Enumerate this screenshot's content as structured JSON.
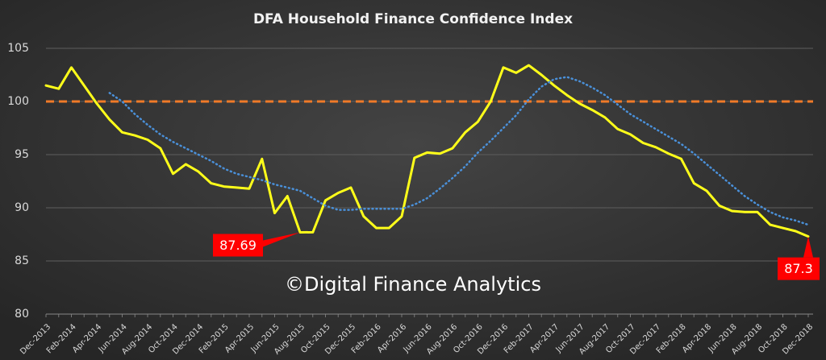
{
  "chart_data": {
    "type": "line",
    "title": "DFA Household Finance Confidence Index",
    "watermark": "©Digital Finance Analytics",
    "categories": [
      "Dec-2013",
      null,
      "Feb-2014",
      null,
      "Apr-2014",
      null,
      "Jun-2014",
      null,
      "Aug-2014",
      null,
      "Oct-2014",
      null,
      "Dec-2014",
      null,
      "Feb-2015",
      null,
      "Apr-2015",
      null,
      "Jun-2015",
      null,
      "Aug-2015",
      null,
      "Oct-2015",
      null,
      "Dec-2015",
      null,
      "Feb-2016",
      null,
      "Apr-2016",
      null,
      "Jun-2016",
      null,
      "Aug-2016",
      null,
      "Oct-2016",
      null,
      "Dec-2016",
      null,
      "Feb-2017",
      null,
      "Apr-2017",
      null,
      "Jun-2017",
      null,
      "Aug-2017",
      null,
      "Oct-2017",
      null,
      "Dec-2017",
      null,
      "Feb-2018",
      null,
      "Apr-2018",
      null,
      "Jun-2018",
      null,
      "Aug-2018",
      null,
      "Oct-2018",
      null,
      "Dec-2018"
    ],
    "series": [
      {
        "color": "#ffff1a",
        "dash": "solid",
        "values": [
          101.5,
          101.2,
          103.2,
          101.5,
          99.8,
          98.3,
          97.1,
          96.8,
          96.4,
          95.6,
          93.2,
          94.1,
          93.4,
          92.3,
          92.0,
          91.9,
          91.8,
          94.6,
          89.5,
          91.1,
          87.69,
          87.7,
          90.7,
          91.4,
          91.9,
          89.2,
          88.1,
          88.1,
          89.2,
          94.7,
          95.2,
          95.1,
          95.6,
          97.1,
          98.1,
          100.0,
          103.2,
          102.7,
          103.4,
          102.5,
          101.5,
          100.6,
          99.8,
          99.2,
          98.5,
          97.4,
          96.9,
          96.1,
          95.7,
          95.1,
          94.6,
          92.3,
          91.6,
          90.2,
          89.7,
          89.6,
          89.6,
          88.4,
          88.1,
          87.8,
          87.3
        ],
        "value_labels": [
          null,
          null,
          null,
          null,
          null,
          null,
          null,
          null,
          null,
          null,
          null,
          null,
          null,
          null,
          null,
          null,
          null,
          null,
          null,
          null,
          "87.69",
          null,
          null,
          null,
          null,
          null,
          null,
          null,
          null,
          null,
          null,
          null,
          null,
          null,
          null,
          null,
          null,
          null,
          null,
          null,
          null,
          null,
          null,
          null,
          null,
          null,
          null,
          null,
          null,
          null,
          null,
          null,
          null,
          null,
          null,
          null,
          null,
          null,
          null,
          null,
          "87.3"
        ]
      },
      {
        "color": "#4a90d9",
        "dash": "dotted",
        "values": [
          null,
          null,
          null,
          null,
          null,
          100.8,
          100.0,
          98.8,
          97.8,
          96.9,
          96.2,
          95.6,
          95.0,
          94.4,
          93.7,
          93.2,
          92.9,
          92.6,
          92.2,
          91.9,
          91.6,
          90.9,
          90.2,
          89.8,
          89.8,
          89.9,
          89.9,
          89.9,
          89.9,
          90.3,
          90.9,
          91.8,
          92.8,
          93.9,
          95.2,
          96.3,
          97.5,
          98.7,
          100.2,
          101.4,
          102.1,
          102.3,
          101.9,
          101.3,
          100.6,
          99.7,
          98.8,
          98.1,
          97.4,
          96.7,
          96.0,
          95.1,
          94.1,
          93.1,
          92.1,
          91.1,
          90.3,
          89.6,
          89.1,
          88.8,
          88.4
        ]
      }
    ],
    "reference_line": {
      "value": 100,
      "color": "#f07a28"
    },
    "label_color": "#ff0000",
    "ylim": [
      80,
      105
    ],
    "yticks": [
      80,
      85,
      90,
      95,
      100,
      105
    ],
    "grid": true
  }
}
